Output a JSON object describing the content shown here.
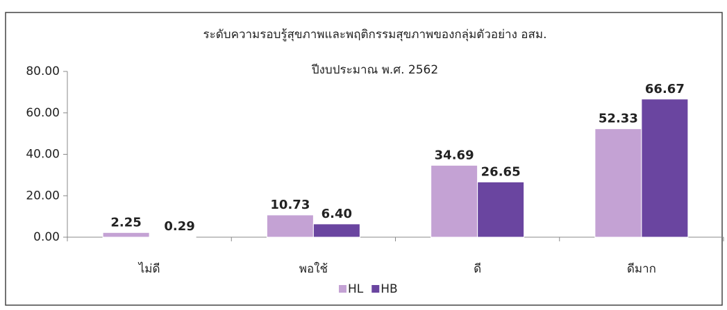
{
  "chart_data": {
    "type": "bar",
    "title": "ระดับความรอบรู้สุขภาพและพฤติกรรมสุขภาพของกลุ่มตัวอย่าง อสม.",
    "subtitle": "ปีงบประมาณ พ.ศ. 2562",
    "categories": [
      "ไม่ดี",
      "พอใช้",
      "ดี",
      "ดีมาก"
    ],
    "series": [
      {
        "name": "HL",
        "color": "#c4a2d4",
        "values": [
          2.25,
          10.73,
          34.69,
          52.33
        ],
        "value_labels": [
          "2.25",
          "10.73",
          "34.69",
          "52.33"
        ]
      },
      {
        "name": "HB",
        "color": "#6a45a0",
        "values": [
          0.29,
          6.4,
          26.65,
          66.67
        ],
        "value_labels": [
          "0.29",
          "6.40",
          "26.65",
          "66.67"
        ]
      }
    ],
    "ylim": [
      0,
      80
    ],
    "yticks": [
      {
        "value": 0,
        "label": "0.00"
      },
      {
        "value": 20,
        "label": "20.00"
      },
      {
        "value": 40,
        "label": "40.00"
      },
      {
        "value": 60,
        "label": "60.00"
      },
      {
        "value": 80,
        "label": "80.00"
      }
    ],
    "legend": "bottom"
  }
}
